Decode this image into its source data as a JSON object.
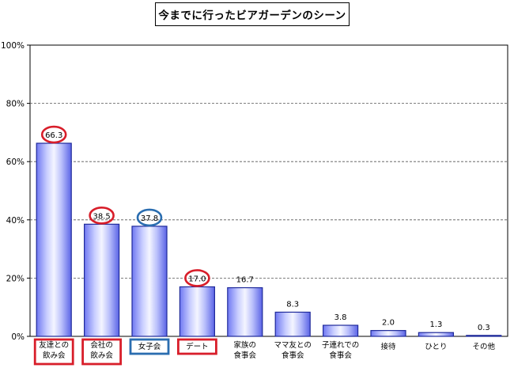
{
  "chart_data": {
    "type": "bar",
    "title": "今までに行ったビアガーデンのシーン",
    "categories": [
      [
        "友達との",
        "飲み会"
      ],
      [
        "会社の",
        "飲み会"
      ],
      [
        "女子会"
      ],
      [
        "デート"
      ],
      [
        "家族の",
        "食事会"
      ],
      [
        "ママ友との",
        "食事会"
      ],
      [
        "子連れでの",
        "食事会"
      ],
      [
        "接待"
      ],
      [
        "ひとり"
      ],
      [
        "その他"
      ]
    ],
    "values": [
      66.3,
      38.5,
      37.8,
      17.0,
      16.7,
      8.3,
      3.8,
      2.0,
      1.3,
      0.3
    ],
    "value_labels": [
      "66.3",
      "38.5",
      "37.8",
      "17.0",
      "16.7",
      "8.3",
      "3.8",
      "2.0",
      "1.3",
      "0.3"
    ],
    "ylim": [
      0,
      100
    ],
    "y_ticks": [
      0,
      20,
      40,
      60,
      80,
      100
    ],
    "y_tick_labels": [
      "0%",
      "20%",
      "40%",
      "60%",
      "80%",
      "100%"
    ],
    "grid": true,
    "highlights": [
      {
        "index": 0,
        "color": "#d81e2a"
      },
      {
        "index": 1,
        "color": "#d81e2a"
      },
      {
        "index": 2,
        "color": "#2a6db0"
      },
      {
        "index": 3,
        "color": "#d81e2a"
      }
    ]
  }
}
